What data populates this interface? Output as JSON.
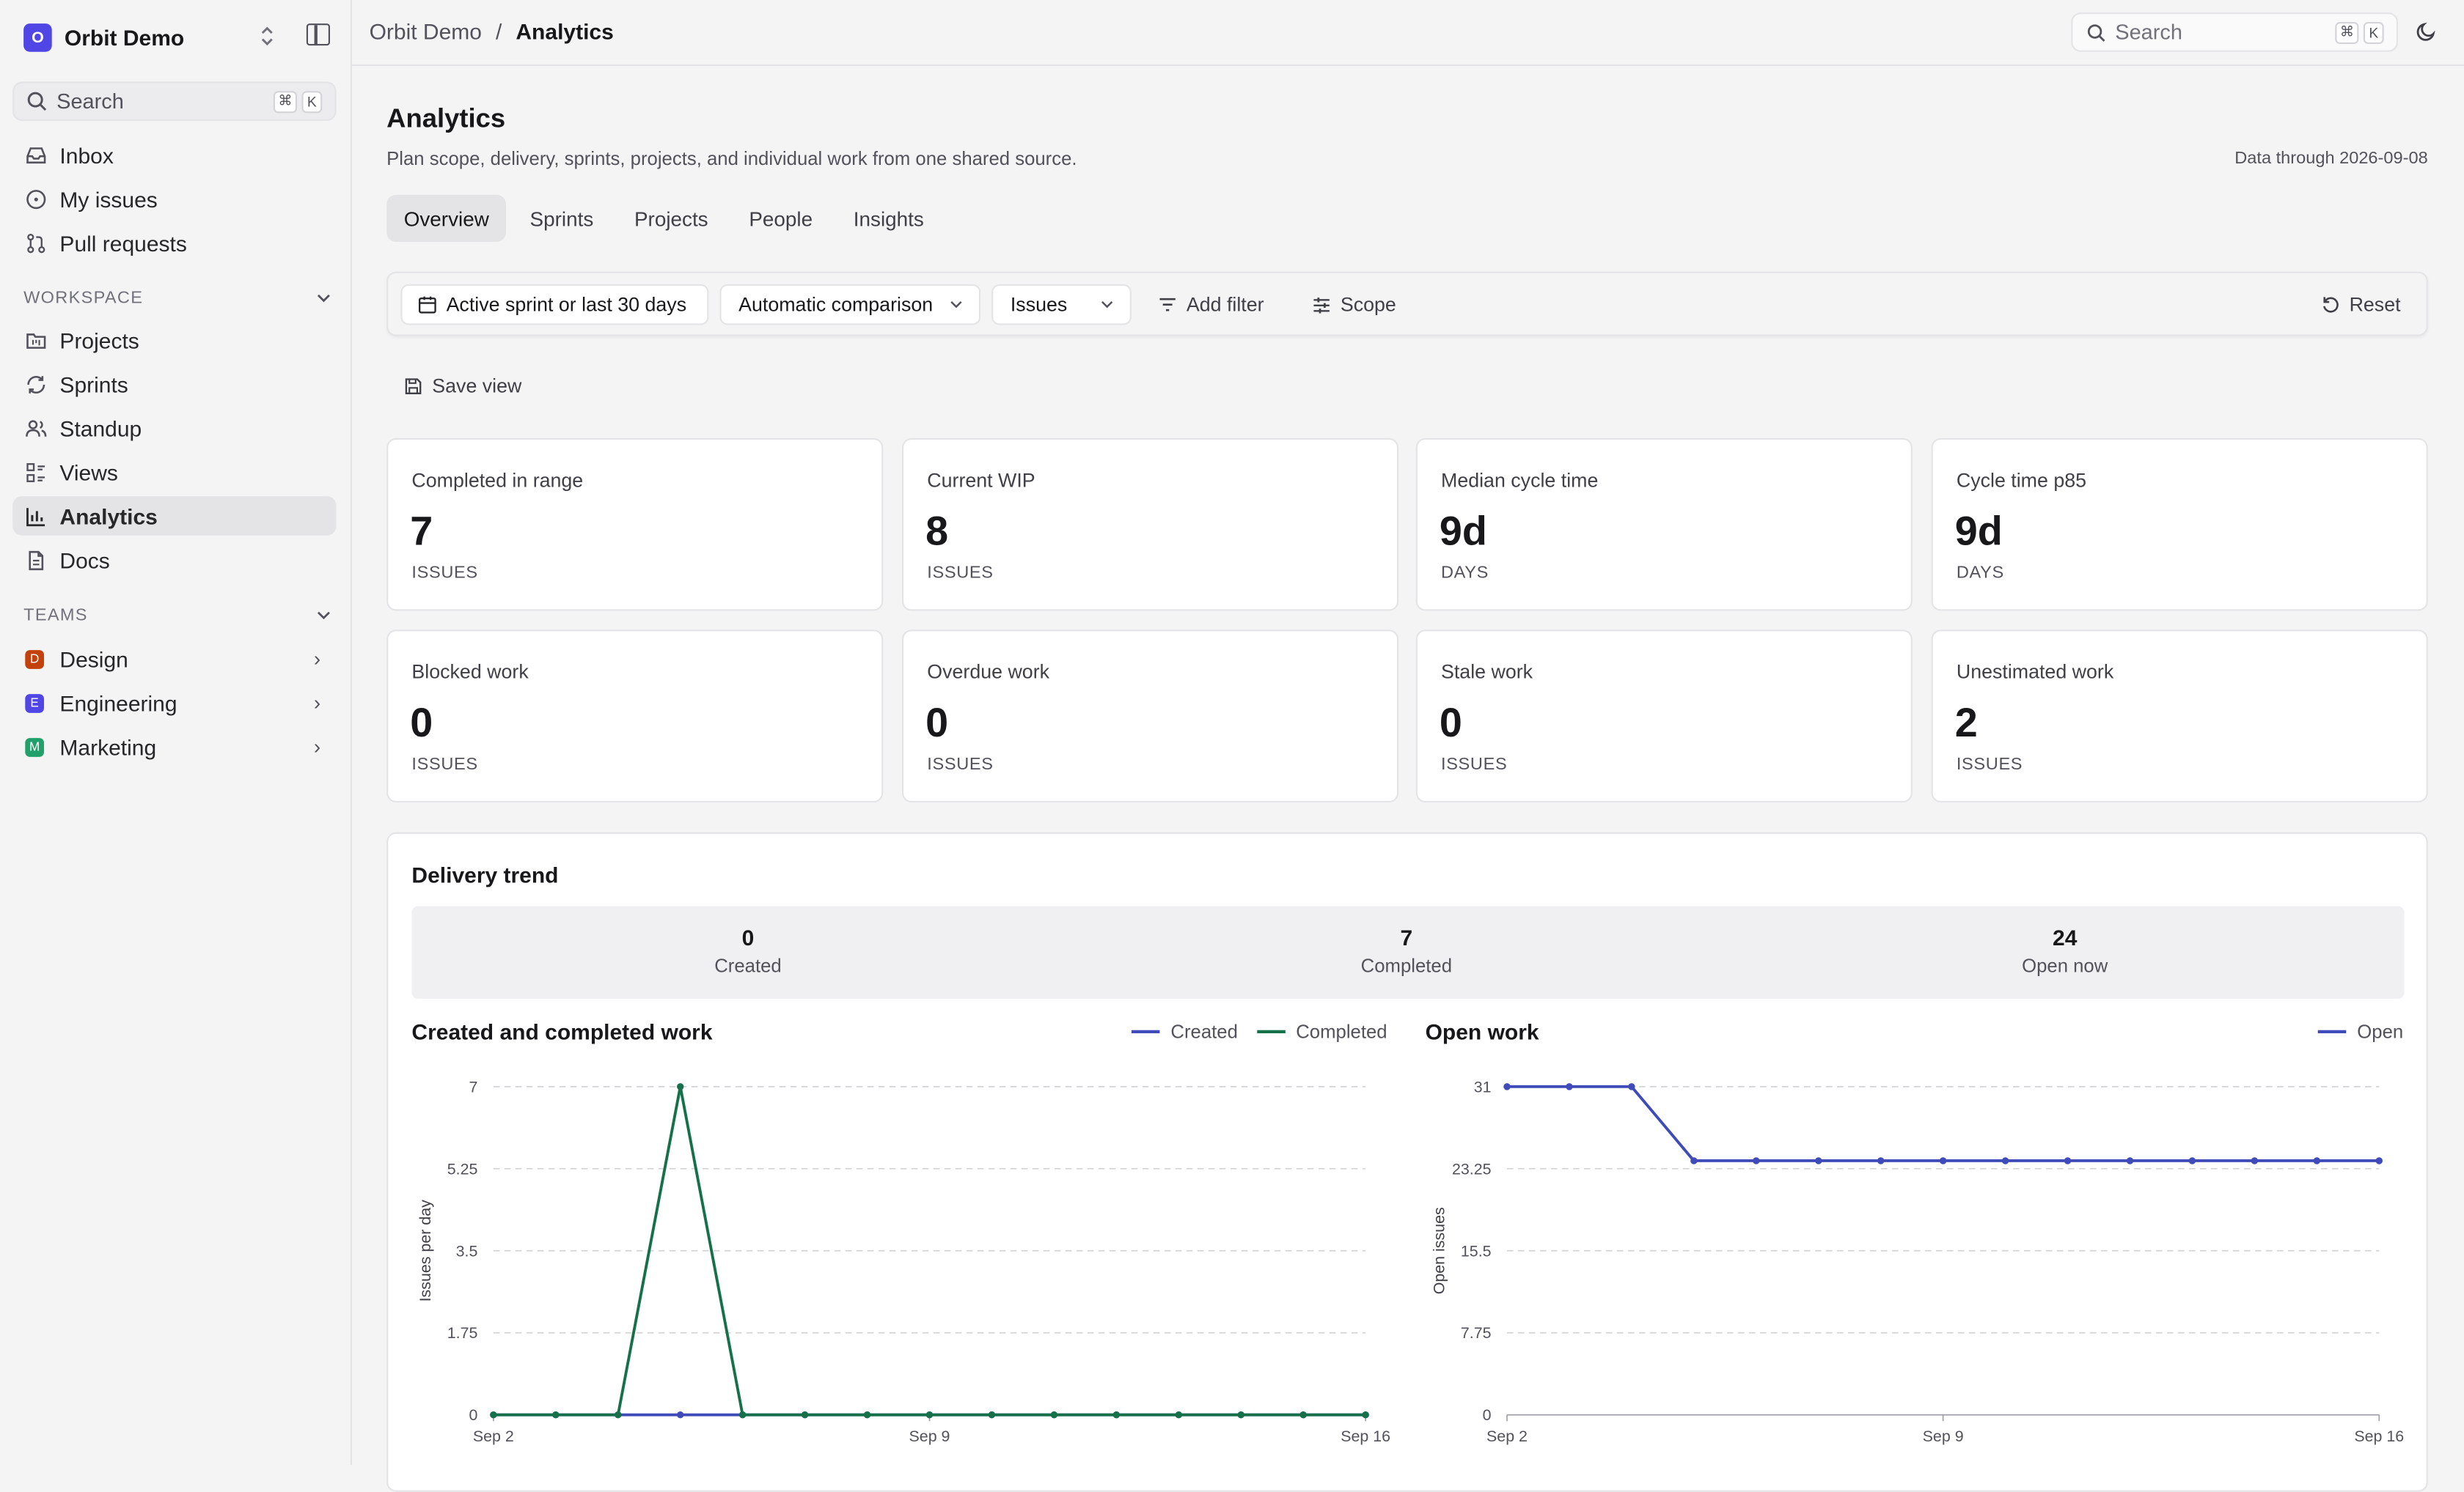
{
  "workspace": {
    "initial": "O",
    "name": "Orbit Demo"
  },
  "sidebar": {
    "search_label": "Search",
    "shortcut": [
      "⌘",
      "K"
    ],
    "primary": [
      {
        "label": "Inbox",
        "icon": "inbox-icon"
      },
      {
        "label": "My issues",
        "icon": "circle-dot-icon"
      },
      {
        "label": "Pull requests",
        "icon": "git-pull-request-icon"
      }
    ],
    "workspace_heading": "WORKSPACE",
    "workspace_items": [
      {
        "label": "Projects",
        "icon": "folder-kanban-icon"
      },
      {
        "label": "Sprints",
        "icon": "refresh-icon"
      },
      {
        "label": "Standup",
        "icon": "users-icon"
      },
      {
        "label": "Views",
        "icon": "list-view-icon"
      },
      {
        "label": "Analytics",
        "icon": "bar-chart-icon",
        "active": true
      },
      {
        "label": "Docs",
        "icon": "file-text-icon"
      }
    ],
    "teams_heading": "TEAMS",
    "teams": [
      {
        "initial": "D",
        "label": "Design",
        "color": "#c2410c"
      },
      {
        "initial": "E",
        "label": "Engineering",
        "color": "#4f46e5"
      },
      {
        "initial": "M",
        "label": "Marketing",
        "color": "#22a06b"
      }
    ]
  },
  "header": {
    "breadcrumb": [
      "Orbit Demo",
      "Analytics"
    ],
    "separator": "/",
    "search_label": "Search",
    "shortcut": [
      "⌘",
      "K"
    ]
  },
  "page": {
    "title": "Analytics",
    "subtitle": "Plan scope, delivery, sprints, projects, and individual work from one shared source.",
    "data_through": "Data through 2026-09-08"
  },
  "tabs": [
    "Overview",
    "Sprints",
    "Projects",
    "People",
    "Insights"
  ],
  "filters": {
    "range": "Active sprint or last 30 days",
    "comparison": "Automatic comparison",
    "entity": "Issues",
    "add_filter": "Add filter",
    "scope": "Scope",
    "reset": "Reset",
    "save_view": "Save view"
  },
  "metrics": [
    {
      "label": "Completed in range",
      "value": "7",
      "unit": "ISSUES"
    },
    {
      "label": "Current WIP",
      "value": "8",
      "unit": "ISSUES"
    },
    {
      "label": "Median cycle time",
      "value": "9d",
      "unit": "DAYS"
    },
    {
      "label": "Cycle time p85",
      "value": "9d",
      "unit": "DAYS"
    },
    {
      "label": "Blocked work",
      "value": "0",
      "unit": "ISSUES"
    },
    {
      "label": "Overdue work",
      "value": "0",
      "unit": "ISSUES"
    },
    {
      "label": "Stale work",
      "value": "0",
      "unit": "ISSUES"
    },
    {
      "label": "Unestimated work",
      "value": "2",
      "unit": "ISSUES"
    }
  ],
  "delivery": {
    "title": "Delivery trend",
    "summary": [
      {
        "value": "0",
        "label": "Created"
      },
      {
        "value": "7",
        "label": "Completed"
      },
      {
        "value": "24",
        "label": "Open now"
      }
    ]
  },
  "colors": {
    "created": "#3f4bb8",
    "completed": "#16704a",
    "open": "#3f4bb8"
  },
  "chart_data": [
    {
      "type": "line",
      "title": "Created and completed work",
      "ylabel": "Issues per day",
      "ylim": [
        0,
        7
      ],
      "yticks": [
        "0",
        "1.75",
        "3.5",
        "5.25",
        "7"
      ],
      "xticks": [
        "Sep 2",
        "Sep 9",
        "Sep 16"
      ],
      "grid": true,
      "legend": "top-right",
      "x": [
        "Sep 2",
        "Sep 3",
        "Sep 4",
        "Sep 5",
        "Sep 6",
        "Sep 7",
        "Sep 8",
        "Sep 9",
        "Sep 10",
        "Sep 11",
        "Sep 12",
        "Sep 13",
        "Sep 14",
        "Sep 15",
        "Sep 16"
      ],
      "series": [
        {
          "name": "Created",
          "values": [
            0,
            0,
            0,
            0,
            0,
            0,
            0,
            0,
            0,
            0,
            0,
            0,
            0,
            0,
            0
          ]
        },
        {
          "name": "Completed",
          "values": [
            0,
            0,
            0,
            7,
            0,
            0,
            0,
            0,
            0,
            0,
            0,
            0,
            0,
            0,
            0
          ]
        }
      ]
    },
    {
      "type": "line",
      "title": "Open work",
      "ylabel": "Open issues",
      "ylim": [
        0,
        31
      ],
      "yticks": [
        "0",
        "7.75",
        "15.5",
        "23.25",
        "31"
      ],
      "xticks": [
        "Sep 2",
        "Sep 9",
        "Sep 16"
      ],
      "grid": true,
      "legend": "top-right",
      "x": [
        "Sep 2",
        "Sep 3",
        "Sep 4",
        "Sep 5",
        "Sep 6",
        "Sep 7",
        "Sep 8",
        "Sep 9",
        "Sep 10",
        "Sep 11",
        "Sep 12",
        "Sep 13",
        "Sep 14",
        "Sep 15",
        "Sep 16"
      ],
      "series": [
        {
          "name": "Open",
          "values": [
            31,
            31,
            31,
            24,
            24,
            24,
            24,
            24,
            24,
            24,
            24,
            24,
            24,
            24,
            24
          ]
        }
      ]
    }
  ]
}
